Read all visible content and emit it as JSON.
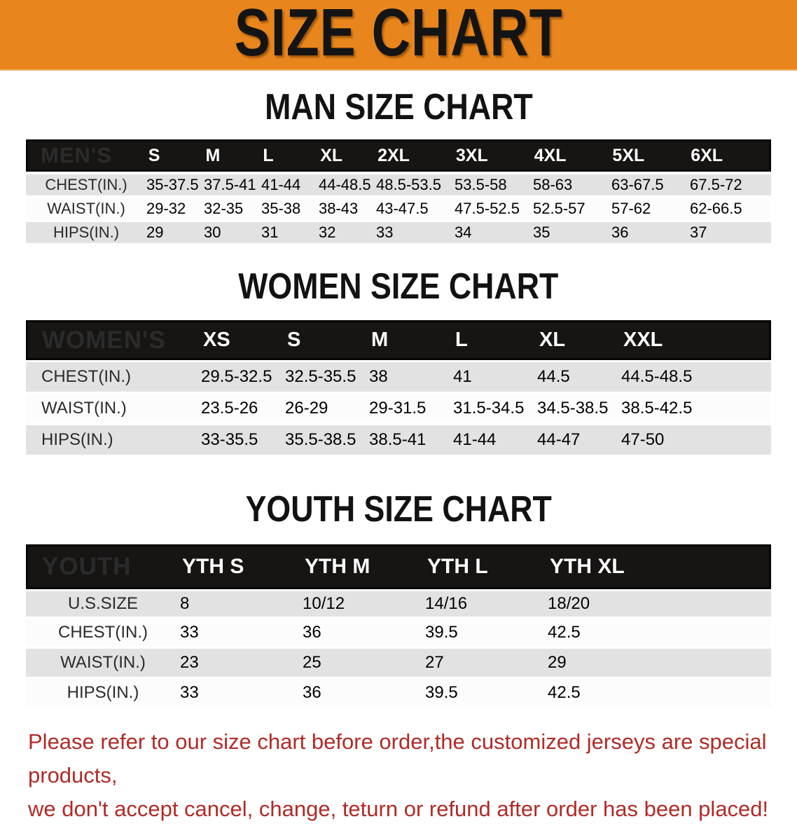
{
  "banner": {
    "title": "SIZE CHART"
  },
  "colors": {
    "banner_bg": "#E8861D",
    "header_bar_bg": "#171513",
    "row_gray": "#E2E2E2",
    "row_white": "#FCFCFC",
    "note_red": "#B02B26"
  },
  "man": {
    "heading": "MAN SIZE CHART",
    "label": "MEN'S",
    "sizes": [
      "S",
      "M",
      "L",
      "XL",
      "2XL",
      "3XL",
      "4XL",
      "5XL",
      "6XL"
    ],
    "rows": [
      {
        "label": "CHEST(IN.)",
        "values": [
          "35-37.5",
          "37.5-41",
          "41-44",
          "44-48.5",
          "48.5-53.5",
          "53.5-58",
          "58-63",
          "63-67.5",
          "67.5-72"
        ]
      },
      {
        "label": "WAIST(IN.)",
        "values": [
          "29-32",
          "32-35",
          "35-38",
          "38-43",
          "43-47.5",
          "47.5-52.5",
          "52.5-57",
          "57-62",
          "62-66.5"
        ]
      },
      {
        "label": "HIPS(IN.)",
        "values": [
          "29",
          "30",
          "31",
          "32",
          "33",
          "34",
          "35",
          "36",
          "37"
        ]
      }
    ]
  },
  "women": {
    "heading": "WOMEN SIZE CHART",
    "label": "WOMEN'S",
    "sizes": [
      "XS",
      "S",
      "M",
      "L",
      "XL",
      "XXL"
    ],
    "rows": [
      {
        "label": "CHEST(IN.)",
        "values": [
          "29.5-32.5",
          "32.5-35.5",
          "38",
          "41",
          "44.5",
          "44.5-48.5"
        ]
      },
      {
        "label": "WAIST(IN.)",
        "values": [
          "23.5-26",
          "26-29",
          "29-31.5",
          "31.5-34.5",
          "34.5-38.5",
          "38.5-42.5"
        ]
      },
      {
        "label": "HIPS(IN.)",
        "values": [
          "33-35.5",
          "35.5-38.5",
          "38.5-41",
          "41-44",
          "44-47",
          "47-50"
        ]
      }
    ]
  },
  "youth": {
    "heading": "YOUTH SIZE CHART",
    "label": "YOUTH",
    "sizes": [
      "YTH S",
      "YTH M",
      "YTH L",
      "YTH XL"
    ],
    "rows": [
      {
        "label": "U.S.SIZE",
        "values": [
          "8",
          "10/12",
          "14/16",
          "18/20"
        ]
      },
      {
        "label": "CHEST(IN.)",
        "values": [
          "33",
          "36",
          "39.5",
          "42.5"
        ]
      },
      {
        "label": "WAIST(IN.)",
        "values": [
          "23",
          "25",
          "27",
          "29"
        ]
      },
      {
        "label": "HIPS(IN.)",
        "values": [
          "33",
          "36",
          "39.5",
          "42.5"
        ]
      }
    ]
  },
  "note": {
    "line1": "Please refer to our size chart before order,the customized jerseys are special products,",
    "line2": "we don't accept cancel, change, teturn or refund after order has been placed!"
  }
}
